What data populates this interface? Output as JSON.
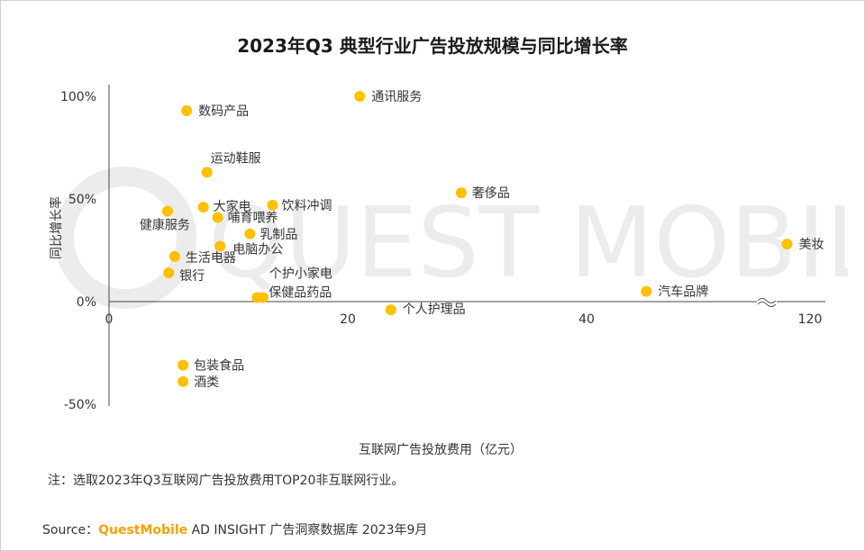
{
  "brand_color": "#F5A200",
  "point_color": "#FFC000",
  "chart_data": {
    "type": "scatter",
    "title": "2023年Q3 典型行业广告投放规模与同比增长率",
    "xlabel": "互联网广告投放费用（亿元）",
    "ylabel": "同比增长率",
    "x_axis_break": "~",
    "xlim": [
      0,
      120
    ],
    "ylim": [
      -50,
      100
    ],
    "x_ticks": [
      {
        "value": 0,
        "label": "0"
      },
      {
        "value": 20,
        "label": "20"
      },
      {
        "value": 40,
        "label": "40"
      },
      {
        "value": 120,
        "label": "120"
      }
    ],
    "y_ticks": [
      {
        "value": 100,
        "label": "100%"
      },
      {
        "value": 50,
        "label": "50%"
      },
      {
        "value": 0,
        "label": "0%"
      },
      {
        "value": -50,
        "label": "-50%"
      }
    ],
    "points": [
      {
        "label": "通讯服务",
        "x": 21.0,
        "y": 100
      },
      {
        "label": "数码产品",
        "x": 6.5,
        "y": 93
      },
      {
        "label": "运动鞋服",
        "x": 8.2,
        "y": 63
      },
      {
        "label": "奢侈品",
        "x": 29.5,
        "y": 53
      },
      {
        "label": "饮料冲调",
        "x": 13.7,
        "y": 47
      },
      {
        "label": "大家电",
        "x": 7.9,
        "y": 46
      },
      {
        "label": "健康服务",
        "x": 4.9,
        "y": 44
      },
      {
        "label": "哺育喂养",
        "x": 9.1,
        "y": 41
      },
      {
        "label": "乳制品",
        "x": 11.8,
        "y": 33
      },
      {
        "label": "电脑办公",
        "x": 9.3,
        "y": 27
      },
      {
        "label": "美妆",
        "x": 115,
        "y": 28
      },
      {
        "label": "生活电器",
        "x": 5.5,
        "y": 22
      },
      {
        "label": "银行",
        "x": 5.0,
        "y": 14
      },
      {
        "label": "汽车品牌",
        "x": 45,
        "y": 5
      },
      {
        "label": "个护小家电",
        "x": 12.9,
        "y": 2
      },
      {
        "label": "保健品药品",
        "x": 12.4,
        "y": 2
      },
      {
        "label": "个人护理品",
        "x": 23.6,
        "y": -4
      },
      {
        "label": "包装食品",
        "x": 6.2,
        "y": -31
      },
      {
        "label": "酒类",
        "x": 6.2,
        "y": -39
      }
    ]
  },
  "footer": {
    "note": "注：选取2023年Q3互联网广告投放费用TOP20非互联网行业。",
    "source_prefix": "Source：",
    "source_brand": "QuestMobile",
    "source_rest": " AD INSIGHT 广告洞察数据库 2023年9月"
  },
  "watermark_text": "QUEST MOBILE"
}
